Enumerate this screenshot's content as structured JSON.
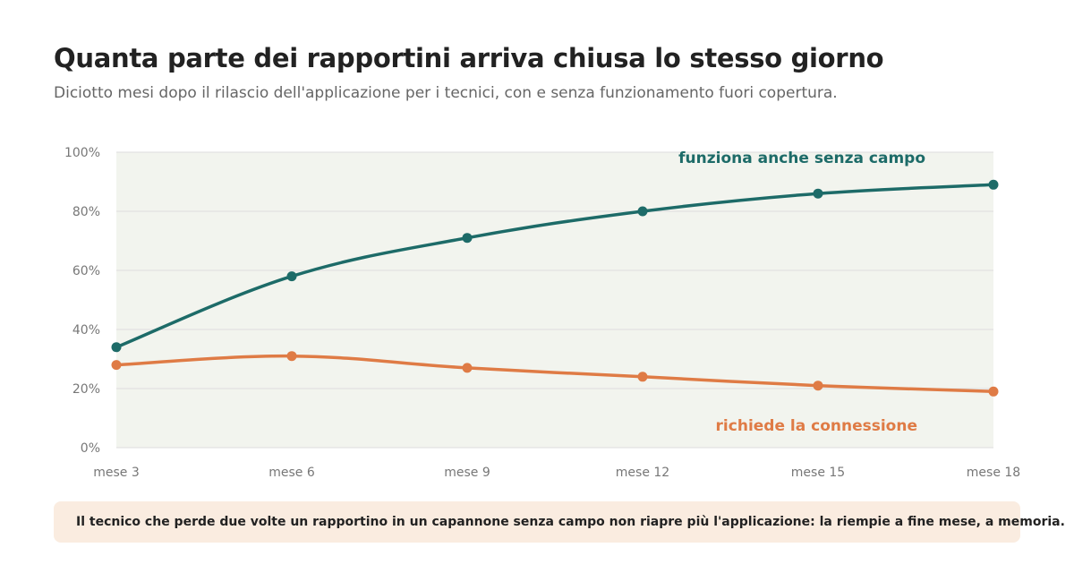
{
  "title": "Quanta parte dei rapportini arriva chiusa lo stesso giorno",
  "subtitle": "Diciotto mesi dopo il rilascio dell'applicazione per i tecnici, con e senza funzionamento fuori copertura.",
  "note": "Il tecnico che perde due volte un rapportino in un capannone senza campo non riapre più l'applicazione: la riempie a fine mese, a memoria.",
  "colors": {
    "plot_background": "#f2f4ee",
    "gridline": "#dddddd",
    "teal": "#1d6b68",
    "orange": "#df7b45"
  },
  "chart_data": {
    "type": "line",
    "title": "Quanta parte dei rapportini arriva chiusa lo stesso giorno",
    "x": [
      "mese 3",
      "mese 6",
      "mese 9",
      "mese 12",
      "mese 15",
      "mese 18"
    ],
    "ylim": [
      0,
      100
    ],
    "y_ticks": [
      "0%",
      "20%",
      "40%",
      "60%",
      "80%",
      "100%"
    ],
    "y_tick_values": [
      0,
      20,
      40,
      60,
      80,
      100
    ],
    "grid": true,
    "series": [
      {
        "name": "funziona anche senza campo",
        "color": "#1d6b68",
        "values": [
          34,
          58,
          71,
          80,
          86,
          89
        ]
      },
      {
        "name": "richiede la connessione",
        "color": "#df7b45",
        "values": [
          28,
          31,
          27,
          24,
          21,
          19
        ]
      }
    ]
  }
}
